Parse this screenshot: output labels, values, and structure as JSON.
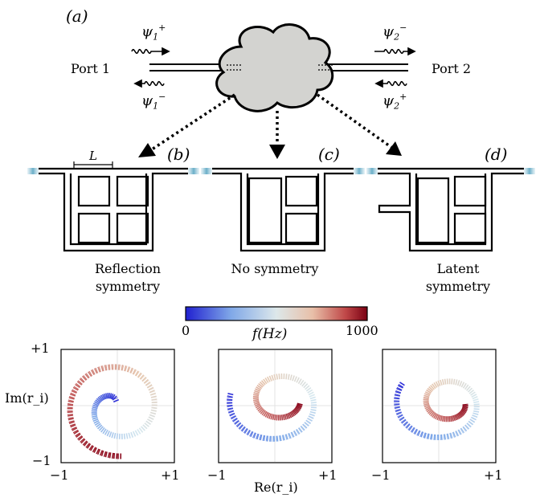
{
  "figure": {
    "top": {
      "panel_a": "(a)",
      "port1": "Port 1",
      "port2": "Port 2",
      "psi1_plus": {
        "base": "ψ",
        "sub": "1",
        "sup": "+"
      },
      "psi1_minus": {
        "base": "ψ",
        "sub": "1",
        "sup": "−"
      },
      "psi2_minus": {
        "base": "ψ",
        "sub": "2",
        "sup": "−"
      },
      "psi2_plus": {
        "base": "ψ",
        "sub": "2",
        "sup": "+"
      }
    },
    "middle": {
      "panel_b": "(b)",
      "panel_c": "(c)",
      "panel_d": "(d)",
      "length_label": "L",
      "caption_b": [
        "Reflection",
        "symmetry"
      ],
      "caption_c": "No symmetry",
      "caption_d": [
        "Latent",
        "symmetry"
      ]
    },
    "colorbar": {
      "min_label": "0",
      "max_label": "1000",
      "label": "f(Hz)",
      "colors": [
        "#2b2bd6",
        "#7ba6e8",
        "#d6e8ef",
        "#e6c8b0",
        "#c25a5a",
        "#8b0a1e"
      ]
    },
    "plots": {
      "y_label": "Im(r_i)",
      "x_label": "Re(r_i)",
      "y_top_tick": "+1",
      "y_bottom_tick": "−1",
      "x_left_tick": "−1",
      "x_right_tick": "+1"
    }
  }
}
